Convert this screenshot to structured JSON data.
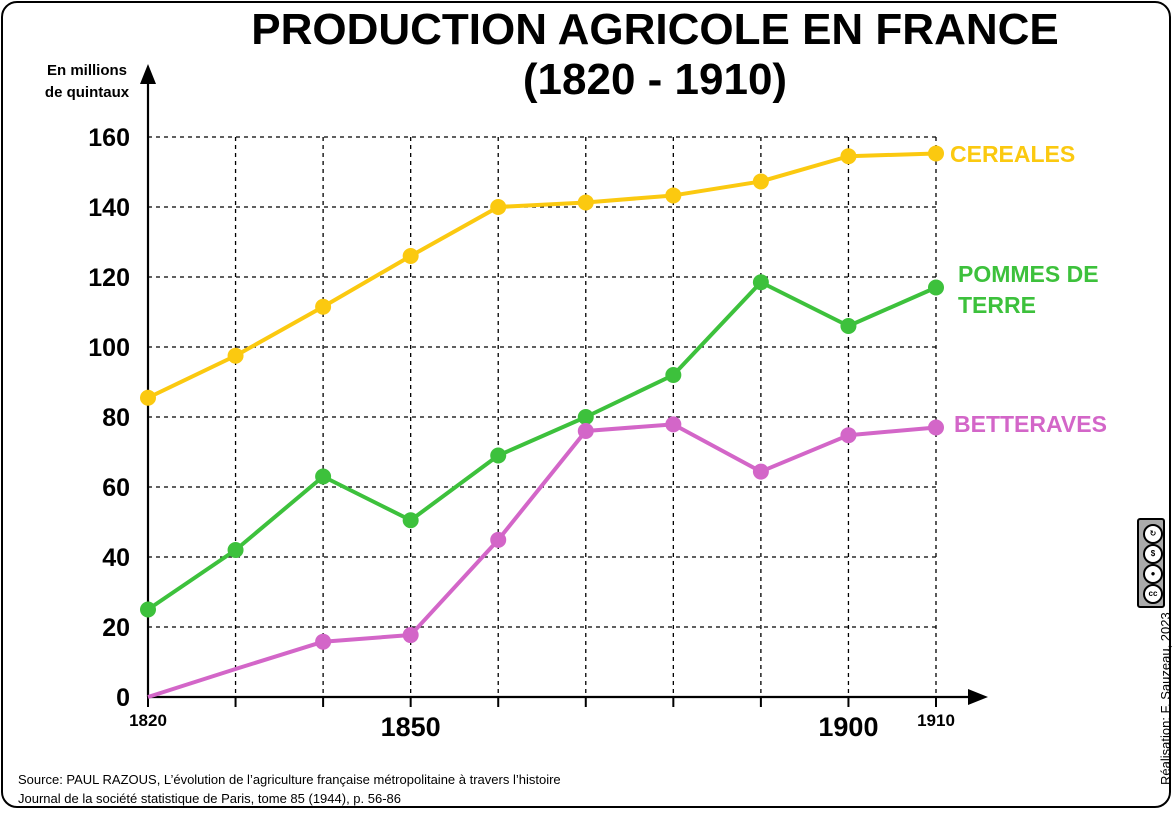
{
  "title_line1": "PRODUCTION AGRICOLE EN FRANCE",
  "title_line2": "(1820 - 1910)",
  "y_axis_label_line1": "En millions",
  "y_axis_label_line2": "de quintaux",
  "source_line1": "Source: PAUL RAZOUS, L’évolution de l’agriculture française métropolitaine à travers l’histoire",
  "source_line2": "Journal de la société statistique de Paris, tome 85 (1944), p. 56-86",
  "credit": "Réalisation: F. Sauzeau, 2023",
  "license_icons": [
    "cc-icon",
    "by-icon",
    "nc-icon",
    "sa-icon"
  ],
  "chart_data": {
    "type": "line",
    "title": "PRODUCTION AGRICOLE EN FRANCE (1820 - 1910)",
    "ylabel": "En millions de quintaux",
    "xlabel": "",
    "xlim": [
      1820,
      1910
    ],
    "ylim": [
      0,
      160
    ],
    "grid": true,
    "x": [
      1820,
      1830,
      1840,
      1850,
      1860,
      1870,
      1880,
      1890,
      1900,
      1910
    ],
    "x_tick_labels": [
      {
        "x": 1820,
        "label": "1820",
        "size": "small"
      },
      {
        "x": 1850,
        "label": "1850",
        "size": "large"
      },
      {
        "x": 1900,
        "label": "1900",
        "size": "large"
      },
      {
        "x": 1910,
        "label": "1910",
        "size": "small"
      }
    ],
    "y_ticks": [
      0,
      20,
      40,
      60,
      80,
      100,
      120,
      140,
      160
    ],
    "series": [
      {
        "name": "CEREALES",
        "label_lines": [
          "CEREALES"
        ],
        "color": "#fbc910",
        "values": [
          85.5,
          97.5,
          111.5,
          126,
          140,
          141.3,
          143.3,
          147.3,
          154.5,
          155.3
        ],
        "markers": [
          true,
          true,
          true,
          true,
          true,
          true,
          true,
          true,
          true,
          true
        ]
      },
      {
        "name": "POMMES DE TERRE",
        "label_lines": [
          "POMMES DE",
          "TERRE"
        ],
        "color": "#3dc13c",
        "values": [
          25,
          42,
          63,
          50.5,
          69,
          80,
          92,
          118.5,
          106,
          117
        ],
        "markers": [
          true,
          true,
          true,
          true,
          true,
          true,
          true,
          true,
          true,
          true
        ]
      },
      {
        "name": "BETTERAVES",
        "label_lines": [
          "BETTERAVES"
        ],
        "color": "#d366c8",
        "values": [
          0,
          8,
          15.8,
          17.7,
          44.9,
          76,
          77.9,
          64.4,
          74.8,
          77
        ],
        "markers": [
          false,
          false,
          true,
          true,
          true,
          true,
          true,
          true,
          true,
          true
        ]
      }
    ]
  }
}
